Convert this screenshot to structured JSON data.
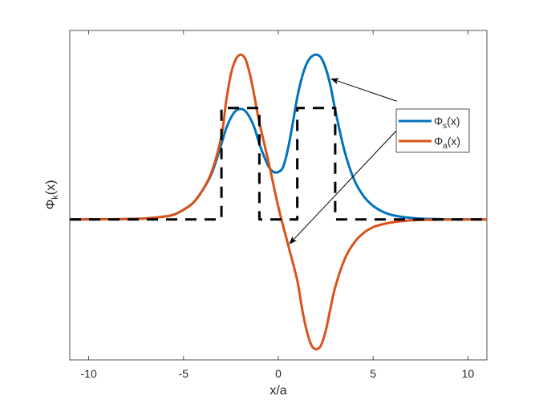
{
  "chart_data": {
    "type": "line",
    "xlabel": "x/a",
    "ylabel": "Φ_k(x)",
    "xlim": [
      -11,
      11
    ],
    "ylim": [
      -1.45,
      1.95
    ],
    "xticks": [
      -10,
      -5,
      0,
      5,
      10
    ],
    "yticks": [],
    "grid": false,
    "legend_position": "right",
    "series": [
      {
        "name": "Φ_s(x)",
        "color": "#0072BD",
        "style": "solid",
        "x": [
          -11,
          -9,
          -8,
          -7,
          -6,
          -5.5,
          -5,
          -4.5,
          -4,
          -3.5,
          -3,
          -2.75,
          -2.5,
          -2.25,
          -2,
          -1.75,
          -1.5,
          -1.25,
          -1,
          -0.75,
          -0.5,
          -0.25,
          0,
          0.25,
          0.5,
          0.75,
          1,
          1.25,
          1.5,
          1.75,
          2,
          2.25,
          2.5,
          2.75,
          3,
          3.5,
          4,
          4.5,
          5,
          5.5,
          6,
          7,
          8,
          9,
          11
        ],
        "y": [
          0,
          0.002,
          0.004,
          0.01,
          0.03,
          0.05,
          0.1,
          0.17,
          0.3,
          0.48,
          0.78,
          0.94,
          1.05,
          1.12,
          1.14,
          1.12,
          1.05,
          0.94,
          0.78,
          0.65,
          0.54,
          0.49,
          0.49,
          0.54,
          0.72,
          0.98,
          1.26,
          1.47,
          1.61,
          1.68,
          1.7,
          1.67,
          1.56,
          1.38,
          1.13,
          0.7,
          0.41,
          0.24,
          0.14,
          0.08,
          0.045,
          0.015,
          0.005,
          0.001,
          0
        ]
      },
      {
        "name": "Φ_a(x)",
        "color": "#D95319",
        "style": "solid",
        "x": [
          -11,
          -9,
          -8,
          -7,
          -6,
          -5.5,
          -5,
          -4.5,
          -4,
          -3.5,
          -3,
          -2.75,
          -2.5,
          -2.25,
          -2,
          -1.75,
          -1.5,
          -1.25,
          -1,
          -0.5,
          0,
          0.5,
          1,
          1.25,
          1.5,
          1.75,
          2,
          2.25,
          2.5,
          2.75,
          3,
          3.5,
          4,
          4.5,
          5,
          5.5,
          6,
          7,
          8,
          9,
          11
        ],
        "y": [
          0,
          0.002,
          0.004,
          0.01,
          0.03,
          0.05,
          0.1,
          0.17,
          0.3,
          0.5,
          0.86,
          1.22,
          1.5,
          1.65,
          1.7,
          1.66,
          1.5,
          1.26,
          1.0,
          0.58,
          0.13,
          -0.25,
          -0.63,
          -0.92,
          -1.15,
          -1.3,
          -1.34,
          -1.3,
          -1.15,
          -0.92,
          -0.7,
          -0.41,
          -0.24,
          -0.14,
          -0.08,
          -0.05,
          -0.03,
          -0.01,
          -0.004,
          -0.002,
          0
        ]
      },
      {
        "name": "",
        "color": "#000000",
        "style": "dashed",
        "x": [
          -11,
          -3,
          -3,
          -1,
          -1,
          1,
          1,
          3,
          3,
          11
        ],
        "y": [
          0,
          0,
          1.15,
          1.15,
          0,
          0,
          1.15,
          1.15,
          0,
          0
        ]
      }
    ],
    "annotations": [
      {
        "from": [
          6.25,
          1.22
        ],
        "to": [
          2.8,
          1.45
        ],
        "type": "arrow"
      },
      {
        "from": [
          6.25,
          0.92
        ],
        "to": [
          0.6,
          -0.25
        ],
        "type": "arrow"
      }
    ],
    "legend": {
      "entries": [
        {
          "base": "Φ",
          "sub": "s",
          "suffix": "(x)",
          "color": "#0072BD"
        },
        {
          "base": "Φ",
          "sub": "a",
          "suffix": "(x)",
          "color": "#D95319"
        }
      ]
    },
    "ylabel_parts": {
      "base": "Φ",
      "sub": "k",
      "suffix": "(x)"
    }
  }
}
